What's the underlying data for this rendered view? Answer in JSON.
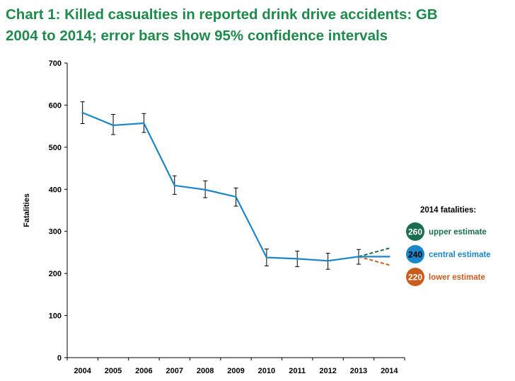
{
  "title": {
    "line1": "Chart 1: Killed casualties in reported drink drive accidents: GB",
    "line2": "2004 to 2014; error bars show 95% confidence intervals"
  },
  "colors": {
    "title": "#1e8a4c",
    "line": "#1a87c8",
    "upper": "#1a6e4e",
    "central": "#1a87c8",
    "lower": "#cc5c1c"
  },
  "chart_data": {
    "type": "line",
    "title": "Chart 1: Killed casualties in reported drink drive accidents: GB 2004 to 2014; error bars show 95% confidence intervals",
    "xlabel": "",
    "ylabel": "Fatalities",
    "ylim": [
      0,
      700
    ],
    "yticks": [
      0,
      100,
      200,
      300,
      400,
      500,
      600,
      700
    ],
    "grid": false,
    "categories": [
      "2004",
      "2005",
      "2006",
      "2007",
      "2008",
      "2009",
      "2010",
      "2011",
      "2012",
      "2013",
      "2014"
    ],
    "series": [
      {
        "values": [
          582,
          552,
          557,
          409,
          399,
          382,
          238,
          235,
          230,
          240,
          240
        ],
        "error_low": [
          556,
          530,
          535,
          388,
          380,
          360,
          218,
          216,
          210,
          222,
          null
        ],
        "error_high": [
          608,
          578,
          580,
          432,
          420,
          403,
          258,
          253,
          248,
          257,
          null
        ]
      }
    ],
    "projections": [
      {
        "name": "upper estimate",
        "from": [
          "2013",
          240
        ],
        "to": [
          "2014",
          260
        ]
      },
      {
        "name": "central estimate",
        "from": [
          "2013",
          240
        ],
        "to": [
          "2014",
          240
        ]
      },
      {
        "name": "lower estimate",
        "from": [
          "2013",
          240
        ],
        "to": [
          "2014",
          220
        ]
      }
    ]
  },
  "legend": {
    "heading": "2014 fatalities:",
    "items": [
      {
        "value": "260",
        "label": "upper estimate",
        "color": "#1a6e4e",
        "textcolor": "#ffffff"
      },
      {
        "value": "240",
        "label": "central estimate",
        "color": "#1a87c8",
        "textcolor": "#000000"
      },
      {
        "value": "220",
        "label": "lower estimate",
        "color": "#cc5c1c",
        "textcolor": "#ffffff"
      }
    ]
  }
}
